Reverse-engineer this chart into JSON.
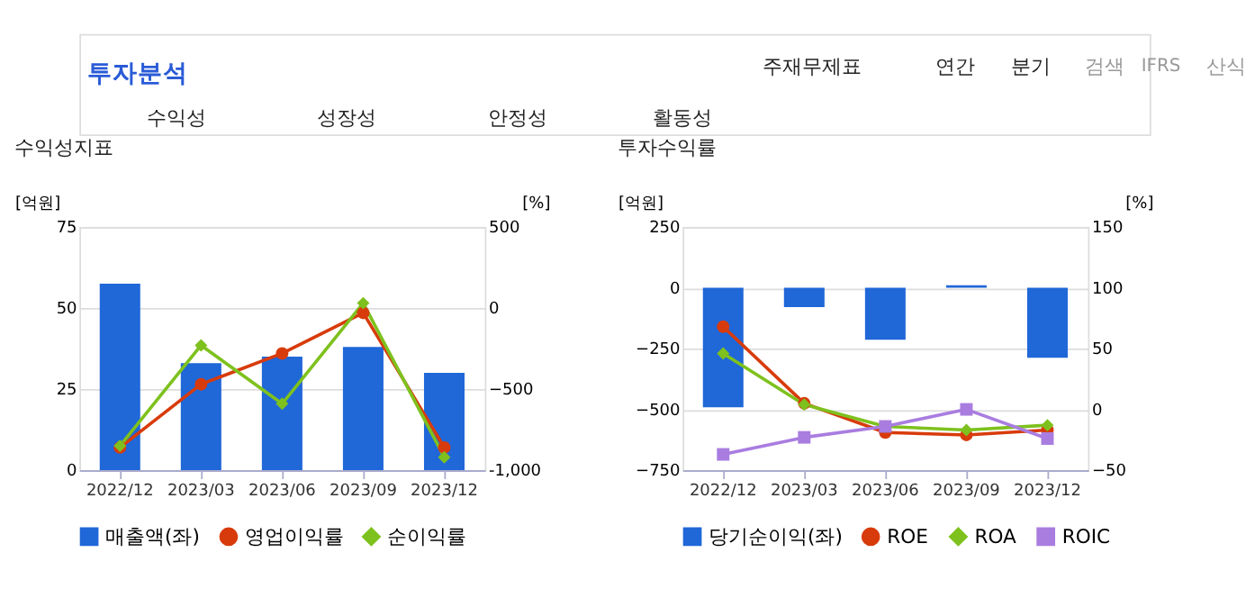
{
  "chart_data": [
    {
      "type": "other",
      "title": "투자분석",
      "annotations": [
        "주재무제표",
        "연간",
        "분기",
        "검색",
        "IFRS",
        "산식",
        "수익성",
        "성장성",
        "안정성",
        "활동성"
      ]
    },
    {
      "type": "bar",
      "title": "수익성지표",
      "ylabel": "[억원]",
      "y2label": "[%]",
      "categories": [
        "2022/12",
        "2023/03",
        "2023/06",
        "2023/09",
        "2023/12"
      ],
      "ylim": [
        0,
        75
      ],
      "yticks": [
        0,
        25,
        50,
        75
      ],
      "y2lim": [
        -1000,
        500
      ],
      "y2ticks": [
        {
          "value": -1000,
          "label": "-1,000"
        },
        -500,
        0,
        500
      ],
      "grid": "y",
      "legend": "bottom",
      "series": [
        {
          "name": "매출액(좌)",
          "type": "bar",
          "color": "#2067d8",
          "values": [
            57.5,
            33,
            35,
            38,
            30
          ]
        },
        {
          "name": "영업이익률",
          "type": "line",
          "axis": "y2",
          "marker": "circle",
          "color": "#d83b0b",
          "values": [
            -860,
            -470,
            -280,
            -30,
            -860
          ]
        },
        {
          "name": "순이익률",
          "type": "line",
          "axis": "y2",
          "marker": "diamond",
          "color": "#7ec11e",
          "values": [
            -850,
            -230,
            -590,
            30,
            -920
          ]
        }
      ]
    },
    {
      "type": "bar",
      "title": "투자수익률",
      "ylabel": "[억원]",
      "y2label": "[%]",
      "categories": [
        "2022/12",
        "2023/03",
        "2023/06",
        "2023/09",
        "2023/12"
      ],
      "ylim": [
        -750,
        250
      ],
      "yticks": [
        -750,
        -500,
        -250,
        0,
        250
      ],
      "y2lim": [
        -50,
        150
      ],
      "y2ticks": [
        -50,
        0,
        50,
        100,
        150
      ],
      "grid": "y",
      "legend": "bottom",
      "series": [
        {
          "name": "당기순이익(좌)",
          "type": "bar",
          "color": "#2067d8",
          "values": [
            -491,
            -80,
            -214,
            10,
            -288
          ]
        },
        {
          "name": "ROE",
          "type": "line",
          "axis": "y2",
          "marker": "circle",
          "color": "#d83b0b",
          "values": [
            68,
            5,
            -19,
            -21,
            -17
          ]
        },
        {
          "name": "ROA",
          "type": "line",
          "axis": "y2",
          "marker": "diamond",
          "color": "#7ec11e",
          "values": [
            46,
            4,
            -14,
            -17,
            -13
          ]
        },
        {
          "name": "ROIC",
          "type": "line",
          "axis": "y2",
          "marker": "square",
          "color": "#a97de0",
          "values": [
            -37,
            -23,
            -14,
            0,
            -24
          ]
        }
      ]
    }
  ]
}
